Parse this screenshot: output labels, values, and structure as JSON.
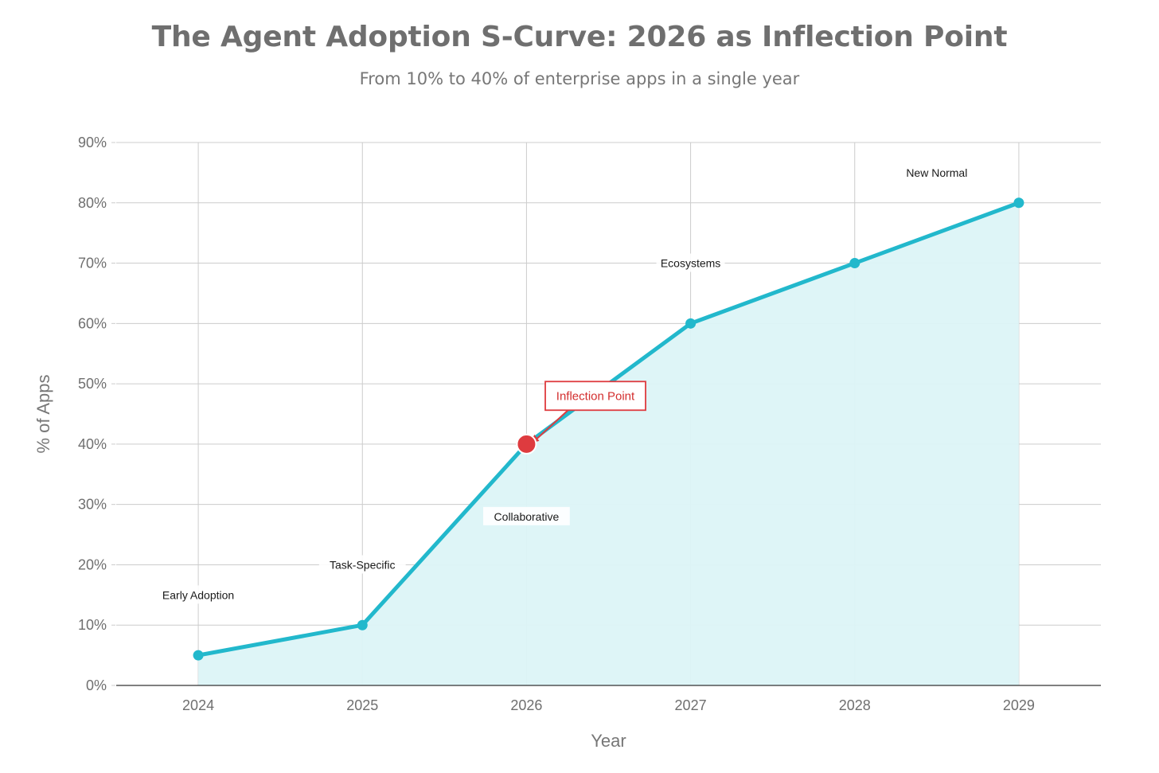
{
  "title": "The Agent Adoption S-Curve: 2026 as Inflection Point",
  "subtitle": "From 10% to 40% of enterprise apps in a single year",
  "colors": {
    "line": "#22b8cc",
    "area": "#dcf4f7",
    "highlight": "#de3b3f",
    "grid": "#cccccc",
    "axis": "#333333"
  },
  "chart_data": {
    "type": "area",
    "x": [
      2024,
      2025,
      2026,
      2027,
      2028,
      2029
    ],
    "x_tick_labels": [
      "2024",
      "2025",
      "2026",
      "2027",
      "2028",
      "2029"
    ],
    "values": [
      5,
      10,
      40,
      60,
      70,
      80
    ],
    "xlabel": "Year",
    "ylabel": "% of Apps",
    "ylim": [
      0,
      90
    ],
    "y_ticks": [
      0,
      10,
      20,
      30,
      40,
      50,
      60,
      70,
      80,
      90
    ],
    "y_tick_labels": [
      "0%",
      "10%",
      "20%",
      "30%",
      "40%",
      "50%",
      "60%",
      "70%",
      "80%",
      "90%"
    ],
    "grid": true,
    "stage_annotations": [
      {
        "x": 2024,
        "y": 15,
        "text": "Early Adoption"
      },
      {
        "x": 2025,
        "y": 20,
        "text": "Task-Specific"
      },
      {
        "x": 2026,
        "y": 28,
        "text": "Collaborative"
      },
      {
        "x": 2027,
        "y": 70,
        "text": "Ecosystems"
      },
      {
        "x": 2028.5,
        "y": 85,
        "text": "New Normal"
      }
    ],
    "highlight": {
      "x": 2026,
      "y": 40,
      "text": "Inflection Point",
      "label_x": 2026.42,
      "label_y": 48
    }
  }
}
